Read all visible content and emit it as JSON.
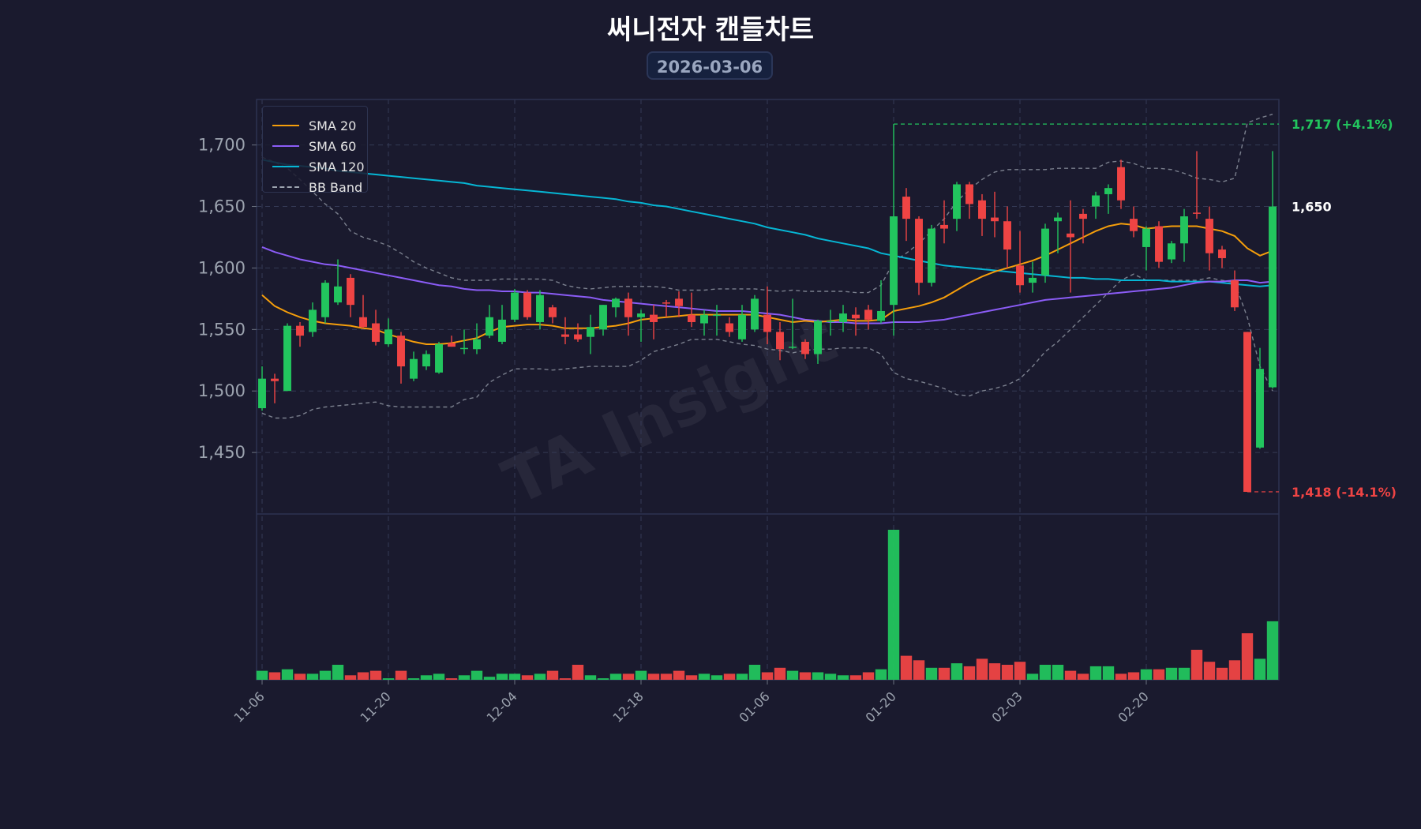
{
  "header": {
    "title": "써니전자 캔들차트",
    "date": "2026-03-06"
  },
  "watermark": "TA Insight",
  "colors": {
    "background": "#1a1a2e",
    "up": "#22c55e",
    "down": "#ef4444",
    "sma20": "#f59e0b",
    "sma60": "#8b5cf6",
    "sma120": "#06b6d4",
    "bb": "#9ca3af"
  },
  "chart_data": {
    "type": "candlestick",
    "title": "써니전자 캔들차트",
    "subtitle": "2026-03-06",
    "ylim": [
      1400,
      1737
    ],
    "yticks": [
      1450,
      1500,
      1550,
      1600,
      1650,
      1700
    ],
    "ytick_labels": [
      "1,450",
      "1,500",
      "1,550",
      "1,600",
      "1,650",
      "1,700"
    ],
    "xtick_labels": [
      "11-06",
      "11-20",
      "12-04",
      "12-18",
      "01-06",
      "01-20",
      "02-03",
      "02-20"
    ],
    "xtick_index": [
      0,
      10,
      20,
      30,
      40,
      50,
      60,
      70
    ],
    "legend": [
      "SMA 20",
      "SMA 60",
      "SMA 120",
      "BB Band"
    ],
    "legend_position": "top-left",
    "grid": true,
    "candles": [
      [
        1486,
        1520,
        1484,
        1510
      ],
      [
        1510,
        1514,
        1490,
        1508
      ],
      [
        1500,
        1555,
        1500,
        1553
      ],
      [
        1553,
        1556,
        1536,
        1545
      ],
      [
        1548,
        1572,
        1544,
        1566
      ],
      [
        1560,
        1590,
        1555,
        1588
      ],
      [
        1572,
        1607,
        1570,
        1585
      ],
      [
        1592,
        1595,
        1560,
        1570
      ],
      [
        1560,
        1578,
        1551,
        1552
      ],
      [
        1555,
        1566,
        1537,
        1540
      ],
      [
        1538,
        1559,
        1536,
        1550
      ],
      [
        1545,
        1548,
        1506,
        1520
      ],
      [
        1510,
        1532,
        1508,
        1526
      ],
      [
        1520,
        1533,
        1517,
        1530
      ],
      [
        1515,
        1540,
        1514,
        1538
      ],
      [
        1539,
        1545,
        1536,
        1536
      ],
      [
        1535,
        1550,
        1530,
        1535
      ],
      [
        1534,
        1555,
        1530,
        1542
      ],
      [
        1545,
        1570,
        1543,
        1560
      ],
      [
        1540,
        1570,
        1538,
        1558
      ],
      [
        1558,
        1583,
        1556,
        1580
      ],
      [
        1580,
        1582,
        1558,
        1560
      ],
      [
        1556,
        1582,
        1550,
        1578
      ],
      [
        1568,
        1570,
        1555,
        1560
      ],
      [
        1546,
        1560,
        1538,
        1544
      ],
      [
        1546,
        1555,
        1540,
        1542
      ],
      [
        1544,
        1562,
        1530,
        1552
      ],
      [
        1550,
        1570,
        1545,
        1570
      ],
      [
        1568,
        1576,
        1560,
        1575
      ],
      [
        1575,
        1580,
        1545,
        1560
      ],
      [
        1560,
        1566,
        1540,
        1563
      ],
      [
        1562,
        1570,
        1542,
        1556
      ],
      [
        1572,
        1574,
        1560,
        1571
      ],
      [
        1575,
        1581,
        1560,
        1569
      ],
      [
        1562,
        1580,
        1552,
        1556
      ],
      [
        1555,
        1566,
        1545,
        1562
      ],
      [
        1562,
        1570,
        1545,
        1562
      ],
      [
        1555,
        1560,
        1544,
        1548
      ],
      [
        1542,
        1570,
        1540,
        1562
      ],
      [
        1550,
        1578,
        1548,
        1575
      ],
      [
        1562,
        1585,
        1538,
        1548
      ],
      [
        1548,
        1556,
        1525,
        1534
      ],
      [
        1536,
        1575,
        1534,
        1536
      ],
      [
        1540,
        1542,
        1526,
        1530
      ],
      [
        1530,
        1558,
        1522,
        1557
      ],
      [
        1557,
        1566,
        1545,
        1557
      ],
      [
        1556,
        1570,
        1548,
        1563
      ],
      [
        1562,
        1568,
        1545,
        1559
      ],
      [
        1566,
        1570,
        1550,
        1558
      ],
      [
        1557,
        1590,
        1555,
        1565
      ],
      [
        1570,
        1717,
        1545,
        1642
      ],
      [
        1658,
        1665,
        1622,
        1640
      ],
      [
        1640,
        1642,
        1578,
        1588
      ],
      [
        1588,
        1635,
        1585,
        1632
      ],
      [
        1635,
        1655,
        1620,
        1632
      ],
      [
        1640,
        1670,
        1630,
        1668
      ],
      [
        1668,
        1670,
        1640,
        1652
      ],
      [
        1655,
        1660,
        1626,
        1640
      ],
      [
        1641,
        1662,
        1625,
        1638
      ],
      [
        1638,
        1650,
        1600,
        1615
      ],
      [
        1602,
        1630,
        1580,
        1586
      ],
      [
        1588,
        1605,
        1580,
        1592
      ],
      [
        1594,
        1636,
        1588,
        1632
      ],
      [
        1638,
        1645,
        1612,
        1641
      ],
      [
        1628,
        1655,
        1580,
        1625
      ],
      [
        1644,
        1648,
        1620,
        1640
      ],
      [
        1650,
        1662,
        1640,
        1659
      ],
      [
        1660,
        1668,
        1644,
        1665
      ],
      [
        1682,
        1688,
        1648,
        1655
      ],
      [
        1640,
        1650,
        1625,
        1630
      ],
      [
        1617,
        1634,
        1598,
        1632
      ],
      [
        1634,
        1638,
        1600,
        1605
      ],
      [
        1607,
        1622,
        1604,
        1620
      ],
      [
        1620,
        1648,
        1605,
        1642
      ],
      [
        1645,
        1695,
        1640,
        1644
      ],
      [
        1640,
        1650,
        1598,
        1612
      ],
      [
        1615,
        1618,
        1600,
        1608
      ],
      [
        1590,
        1598,
        1565,
        1568
      ],
      [
        1548,
        1548,
        1418,
        1418
      ],
      [
        1454,
        1535,
        1453,
        1518
      ],
      [
        1503,
        1695,
        1502,
        1650
      ]
    ],
    "volume": [
      6,
      5,
      7,
      4,
      4,
      6,
      10,
      3,
      5,
      6,
      1,
      6,
      1,
      3,
      4,
      1,
      3,
      6,
      2,
      4,
      4,
      3,
      4,
      6,
      1,
      10,
      3,
      1,
      4,
      4,
      6,
      4,
      4,
      6,
      3,
      4,
      3,
      4,
      4,
      10,
      5,
      8,
      6,
      5,
      5,
      4,
      3,
      3,
      5,
      7,
      100,
      16,
      13,
      8,
      8,
      11,
      9,
      14,
      11,
      10,
      12,
      4,
      10,
      10,
      6,
      4,
      9,
      9,
      4,
      5,
      7,
      7,
      8,
      8,
      20,
      12,
      8,
      13,
      31,
      14,
      39
    ],
    "sma20": [
      1578,
      1569,
      1564,
      1560,
      1557,
      1555,
      1554,
      1553,
      1551,
      1550,
      1546,
      1543,
      1540,
      1538,
      1538,
      1539,
      1541,
      1543,
      1548,
      1552,
      1553,
      1554,
      1554,
      1553,
      1551,
      1551,
      1551,
      1552,
      1553,
      1555,
      1558,
      1559,
      1560,
      1561,
      1562,
      1562,
      1562,
      1562,
      1562,
      1562,
      1560,
      1558,
      1556,
      1557,
      1556,
      1557,
      1558,
      1557,
      1557,
      1558,
      1565,
      1567,
      1569,
      1572,
      1576,
      1582,
      1588,
      1593,
      1597,
      1600,
      1603,
      1606,
      1610,
      1615,
      1620,
      1625,
      1630,
      1634,
      1636,
      1635,
      1632,
      1633,
      1634,
      1634,
      1634,
      1632,
      1630,
      1626,
      1616,
      1610,
      1614
    ],
    "sma60": [
      1617,
      1613,
      1610,
      1607,
      1605,
      1603,
      1602,
      1600,
      1598,
      1596,
      1594,
      1592,
      1590,
      1588,
      1586,
      1585,
      1583,
      1582,
      1582,
      1581,
      1581,
      1580,
      1580,
      1579,
      1578,
      1577,
      1576,
      1574,
      1573,
      1572,
      1571,
      1570,
      1569,
      1568,
      1567,
      1566,
      1565,
      1565,
      1565,
      1564,
      1563,
      1562,
      1560,
      1558,
      1557,
      1556,
      1556,
      1555,
      1555,
      1555,
      1556,
      1556,
      1556,
      1557,
      1558,
      1560,
      1562,
      1564,
      1566,
      1568,
      1570,
      1572,
      1574,
      1575,
      1576,
      1577,
      1578,
      1579,
      1580,
      1581,
      1582,
      1583,
      1584,
      1586,
      1588,
      1589,
      1589,
      1590,
      1590,
      1588,
      1589
    ],
    "sma120": [
      1688,
      1686,
      1684,
      1683,
      1682,
      1681,
      1679,
      1678,
      1677,
      1676,
      1675,
      1674,
      1673,
      1672,
      1671,
      1670,
      1669,
      1667,
      1666,
      1665,
      1664,
      1663,
      1662,
      1661,
      1660,
      1659,
      1658,
      1657,
      1656,
      1654,
      1653,
      1651,
      1650,
      1648,
      1646,
      1644,
      1642,
      1640,
      1638,
      1636,
      1633,
      1631,
      1629,
      1627,
      1624,
      1622,
      1620,
      1618,
      1616,
      1612,
      1610,
      1608,
      1606,
      1604,
      1602,
      1601,
      1600,
      1599,
      1598,
      1597,
      1596,
      1595,
      1594,
      1593,
      1592,
      1592,
      1591,
      1591,
      1590,
      1590,
      1590,
      1590,
      1589,
      1589,
      1589,
      1589,
      1588,
      1587,
      1586,
      1585,
      1586
    ],
    "bb_upper": [
      1690,
      1686,
      1681,
      1672,
      1662,
      1652,
      1644,
      1630,
      1625,
      1622,
      1618,
      1612,
      1605,
      1600,
      1596,
      1592,
      1590,
      1590,
      1590,
      1591,
      1591,
      1591,
      1591,
      1590,
      1586,
      1584,
      1583,
      1584,
      1585,
      1585,
      1585,
      1585,
      1584,
      1582,
      1582,
      1582,
      1583,
      1583,
      1583,
      1583,
      1582,
      1581,
      1582,
      1581,
      1581,
      1581,
      1581,
      1580,
      1580,
      1586,
      1605,
      1612,
      1620,
      1630,
      1640,
      1654,
      1664,
      1672,
      1678,
      1680,
      1680,
      1680,
      1680,
      1681,
      1681,
      1681,
      1681,
      1686,
      1687,
      1685,
      1681,
      1681,
      1680,
      1677,
      1673,
      1672,
      1670,
      1673,
      1718,
      1722,
      1725
    ],
    "bb_lower": [
      1482,
      1478,
      1478,
      1480,
      1485,
      1487,
      1488,
      1489,
      1490,
      1491,
      1488,
      1487,
      1487,
      1487,
      1487,
      1487,
      1493,
      1495,
      1507,
      1513,
      1518,
      1518,
      1518,
      1517,
      1518,
      1519,
      1520,
      1520,
      1520,
      1520,
      1525,
      1532,
      1535,
      1538,
      1542,
      1542,
      1542,
      1540,
      1538,
      1537,
      1534,
      1533,
      1531,
      1533,
      1534,
      1534,
      1535,
      1535,
      1535,
      1530,
      1515,
      1510,
      1508,
      1505,
      1502,
      1497,
      1496,
      1500,
      1502,
      1505,
      1510,
      1520,
      1532,
      1540,
      1550,
      1560,
      1570,
      1580,
      1590,
      1595,
      1590,
      1590,
      1590,
      1590,
      1590,
      1592,
      1590,
      1588,
      1560,
      1520,
      1500
    ],
    "annotations": [
      {
        "label": "1,717 (+4.1%)",
        "value": 1717,
        "color": "#22c55e"
      },
      {
        "label": "1,650",
        "value": 1650,
        "color": "#ffffff"
      },
      {
        "label": "1,418 (-14.1%)",
        "value": 1418,
        "color": "#ef4444"
      }
    ]
  }
}
